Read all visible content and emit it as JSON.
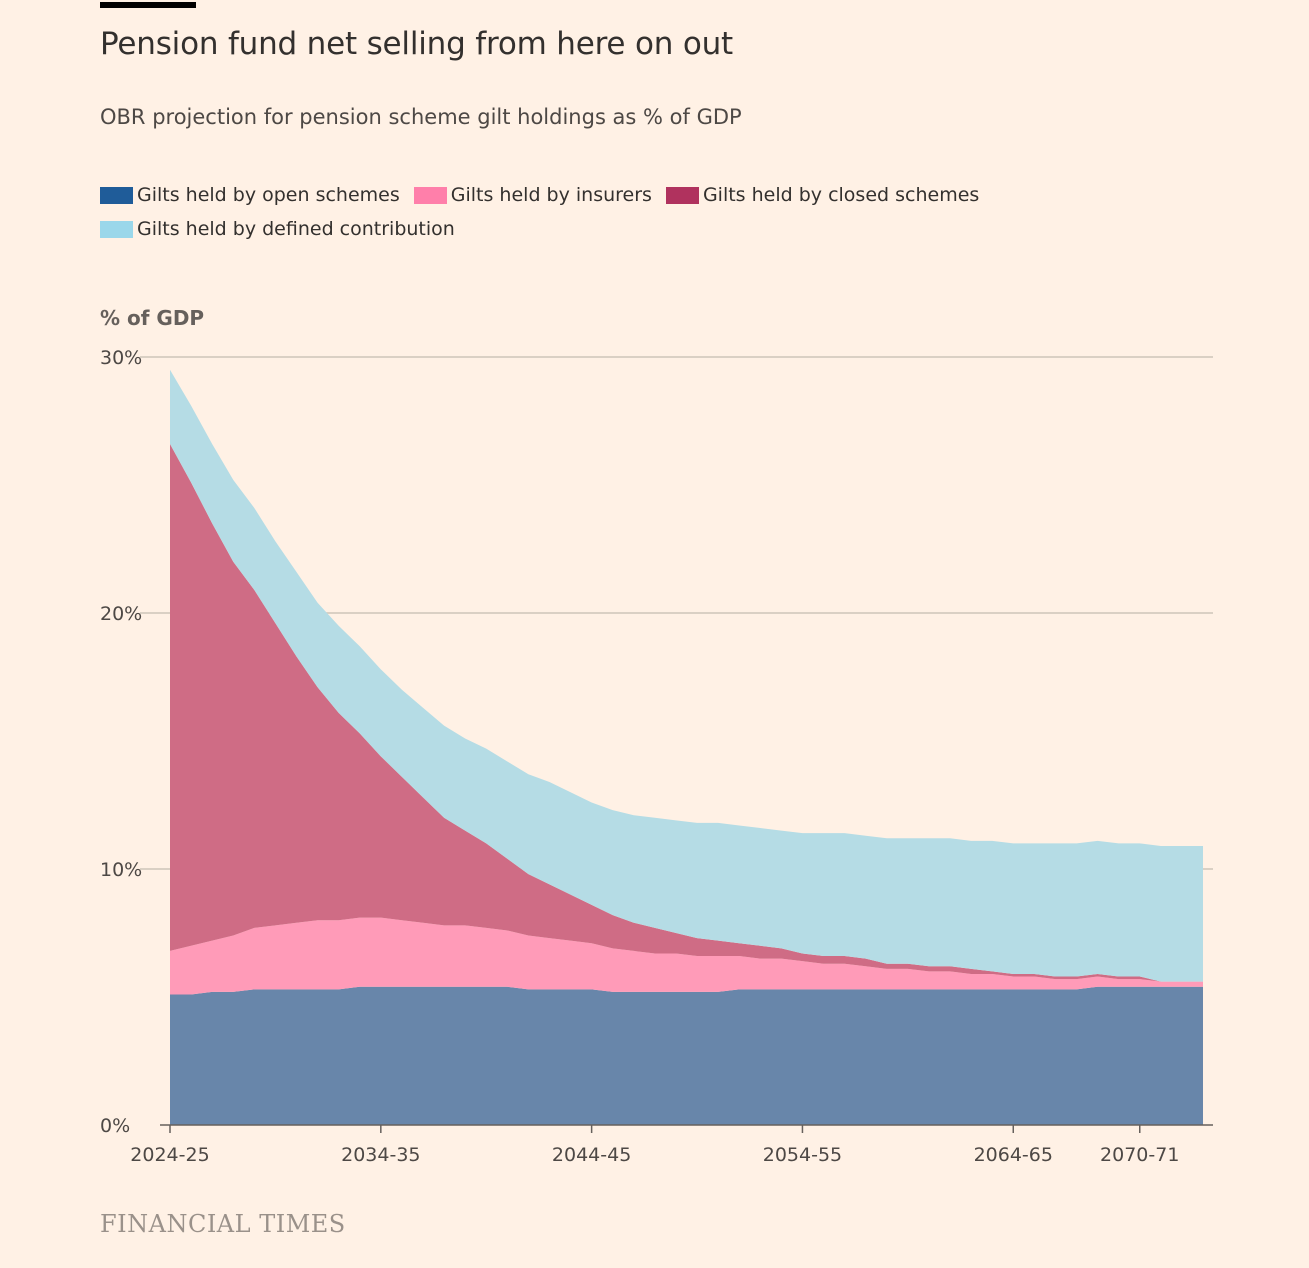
{
  "title": "Pension fund net selling from here on out",
  "subtitle": "OBR projection for pension scheme gilt holdings as % of GDP",
  "unit_label": "% of GDP",
  "source": "FINANCIAL TIMES",
  "colors": {
    "background": "#FFF1E5",
    "gridline": "#CEC6B9",
    "axis": "#66605C",
    "open_schemes_fill": "#6886AA",
    "open_schemes_legend": "#1F5C99",
    "insurers_fill": "#FF9BB8",
    "insurers_legend": "#FF7FAA",
    "closed_schemes_fill": "#CF6C85",
    "closed_schemes_legend": "#B0325E",
    "defined_contribution_fill": "#B5DCE5",
    "defined_contribution_legend": "#9AD7EA"
  },
  "legend": [
    {
      "label": "Gilts held by open schemes",
      "color": "#1F5C99"
    },
    {
      "label": "Gilts held by insurers",
      "color": "#FF7FAA"
    },
    {
      "label": "Gilts held by closed schemes",
      "color": "#B0325E"
    },
    {
      "label": "Gilts held by defined contribution",
      "color": "#9AD7EA"
    }
  ],
  "chart_data": {
    "type": "area",
    "stacked": true,
    "title": "Pension fund net selling from here on out",
    "subtitle": "OBR projection for pension scheme gilt holdings as % of GDP",
    "ylabel": "% of GDP",
    "ylim": [
      0,
      30
    ],
    "yticks": [
      0,
      10,
      20,
      30
    ],
    "ytick_labels": [
      "0%",
      "10%",
      "20%",
      "30%"
    ],
    "xtick_labels": [
      "2024-25",
      "2034-35",
      "2044-45",
      "2054-55",
      "2064-65",
      "2070-71"
    ],
    "xtick_indices": [
      0,
      10,
      20,
      30,
      40,
      46
    ],
    "grid": true,
    "legend_position": "top-left",
    "x_start_year": 2024,
    "n_years": 50,
    "series": [
      {
        "name": "Gilts held by open schemes",
        "values": [
          5.1,
          5.1,
          5.2,
          5.2,
          5.3,
          5.3,
          5.3,
          5.3,
          5.3,
          5.4,
          5.4,
          5.4,
          5.4,
          5.4,
          5.4,
          5.4,
          5.4,
          5.3,
          5.3,
          5.3,
          5.3,
          5.2,
          5.2,
          5.2,
          5.2,
          5.2,
          5.2,
          5.3,
          5.3,
          5.3,
          5.3,
          5.3,
          5.3,
          5.3,
          5.3,
          5.3,
          5.3,
          5.3,
          5.3,
          5.3,
          5.3,
          5.3,
          5.3,
          5.3,
          5.4,
          5.4,
          5.4,
          5.4,
          5.4,
          5.4
        ]
      },
      {
        "name": "Gilts held by insurers",
        "values": [
          1.7,
          1.9,
          2.0,
          2.2,
          2.4,
          2.5,
          2.6,
          2.7,
          2.7,
          2.7,
          2.7,
          2.6,
          2.5,
          2.4,
          2.4,
          2.3,
          2.2,
          2.1,
          2.0,
          1.9,
          1.8,
          1.7,
          1.6,
          1.5,
          1.5,
          1.4,
          1.4,
          1.3,
          1.2,
          1.2,
          1.1,
          1.0,
          1.0,
          0.9,
          0.8,
          0.8,
          0.7,
          0.7,
          0.6,
          0.6,
          0.5,
          0.5,
          0.4,
          0.4,
          0.4,
          0.3,
          0.3,
          0.2,
          0.2,
          0.2
        ]
      },
      {
        "name": "Gilts held by closed schemes",
        "values": [
          19.8,
          18.1,
          16.3,
          14.6,
          13.2,
          11.8,
          10.4,
          9.1,
          8.1,
          7.2,
          6.3,
          5.6,
          4.9,
          4.2,
          3.7,
          3.3,
          2.8,
          2.4,
          2.1,
          1.8,
          1.5,
          1.3,
          1.1,
          1.0,
          0.8,
          0.7,
          0.6,
          0.5,
          0.5,
          0.4,
          0.3,
          0.3,
          0.3,
          0.3,
          0.2,
          0.2,
          0.2,
          0.2,
          0.2,
          0.1,
          0.1,
          0.1,
          0.1,
          0.1,
          0.1,
          0.1,
          0.1,
          0.0,
          0.0,
          0.0
        ]
      },
      {
        "name": "Gilts held by defined contribution",
        "values": [
          2.9,
          3.0,
          3.1,
          3.2,
          3.2,
          3.2,
          3.3,
          3.3,
          3.4,
          3.4,
          3.4,
          3.4,
          3.5,
          3.6,
          3.6,
          3.7,
          3.8,
          3.9,
          4.0,
          4.0,
          4.0,
          4.1,
          4.2,
          4.3,
          4.4,
          4.5,
          4.6,
          4.6,
          4.6,
          4.6,
          4.7,
          4.8,
          4.8,
          4.8,
          4.9,
          4.9,
          5.0,
          5.0,
          5.0,
          5.1,
          5.1,
          5.1,
          5.2,
          5.2,
          5.2,
          5.2,
          5.2,
          5.3,
          5.3,
          5.3
        ]
      }
    ]
  }
}
